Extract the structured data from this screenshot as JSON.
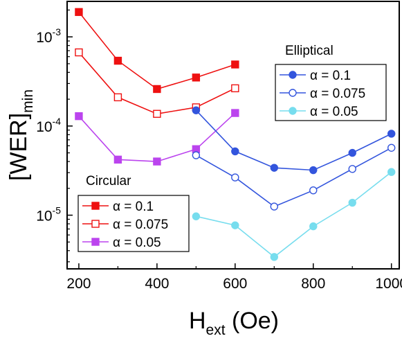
{
  "chart_data": {
    "type": "line",
    "xlabel": {
      "main": "H",
      "sub": "ext",
      "unit": " (Oe)"
    },
    "ylabel": {
      "main": "[WER]",
      "sub": "min"
    },
    "x_scale": "linear",
    "y_scale": "log",
    "xlim": [
      170,
      1020
    ],
    "ylim": [
      2.5e-06,
      0.0025
    ],
    "x_ticks": [
      200,
      400,
      600,
      800,
      1000
    ],
    "y_ticks": [
      {
        "value": 1e-05,
        "base": "10",
        "exp": "-5"
      },
      {
        "value": 0.0001,
        "base": "10",
        "exp": "-4"
      },
      {
        "value": 0.001,
        "base": "10",
        "exp": "-3"
      }
    ],
    "grid": false,
    "legends": [
      {
        "title": "Elliptical",
        "placement": "upper-right",
        "group": "elliptical"
      },
      {
        "title": "Circular",
        "placement": "lower-left",
        "group": "circular"
      }
    ],
    "series": [
      {
        "group": "circular",
        "name": "α = 0.1",
        "color": "#ee1111",
        "marker": "square",
        "filled": true,
        "x": [
          200,
          300,
          400,
          500,
          600
        ],
        "y": [
          0.0019,
          0.00054,
          0.00026,
          0.00035,
          0.00049
        ]
      },
      {
        "group": "circular",
        "name": "α = 0.075",
        "color": "#ee1111",
        "marker": "square",
        "filled": false,
        "x": [
          200,
          300,
          400,
          500,
          600
        ],
        "y": [
          0.00067,
          0.00021,
          0.000137,
          0.000162,
          0.000265
        ]
      },
      {
        "group": "circular",
        "name": "α = 0.05",
        "color": "#bb44ee",
        "marker": "square",
        "filled": true,
        "x": [
          200,
          300,
          400,
          500,
          600
        ],
        "y": [
          0.000129,
          4.2e-05,
          4e-05,
          5.5e-05,
          0.00014
        ]
      },
      {
        "group": "elliptical",
        "name": "α = 0.1",
        "color": "#3355dd",
        "marker": "circle",
        "filled": true,
        "x": [
          500,
          600,
          700,
          800,
          900,
          1000
        ],
        "y": [
          0.00015,
          5.2e-05,
          3.4e-05,
          3.2e-05,
          5e-05,
          8.2e-05
        ]
      },
      {
        "group": "elliptical",
        "name": "α = 0.075",
        "color": "#3355dd",
        "marker": "circle",
        "filled": false,
        "x": [
          500,
          600,
          700,
          800,
          900,
          1000
        ],
        "y": [
          4.7e-05,
          2.65e-05,
          1.25e-05,
          1.9e-05,
          3.3e-05,
          5.7e-05
        ]
      },
      {
        "group": "elliptical",
        "name": "α = 0.05",
        "color": "#77ddee",
        "marker": "circle",
        "filled": true,
        "x": [
          500,
          600,
          700,
          800,
          900,
          1000
        ],
        "y": [
          9.7e-06,
          7.7e-06,
          3.4e-06,
          7.5e-06,
          1.38e-05,
          3.05e-05
        ]
      }
    ]
  }
}
